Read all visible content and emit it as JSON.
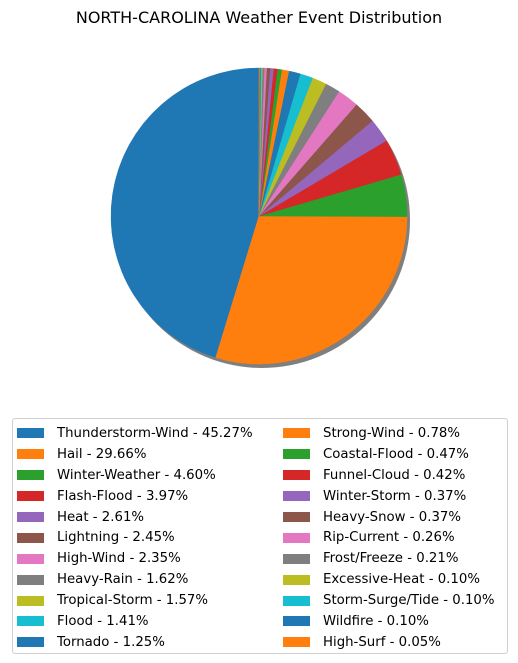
{
  "chart_data": {
    "type": "pie",
    "title": "NORTH-CAROLINA Weather Event Distribution",
    "slices": [
      {
        "label": "Thunderstorm-Wind - 45.27%",
        "value": 45.27,
        "color": "#1f77b4"
      },
      {
        "label": "Hail - 29.66%",
        "value": 29.66,
        "color": "#ff7f0e"
      },
      {
        "label": "Winter-Weather - 4.60%",
        "value": 4.6,
        "color": "#2ca02c"
      },
      {
        "label": "Flash-Flood - 3.97%",
        "value": 3.97,
        "color": "#d62728"
      },
      {
        "label": "Heat - 2.61%",
        "value": 2.61,
        "color": "#9467bd"
      },
      {
        "label": "Lightning - 2.45%",
        "value": 2.45,
        "color": "#8c564b"
      },
      {
        "label": "High-Wind - 2.35%",
        "value": 2.35,
        "color": "#e377c2"
      },
      {
        "label": "Heavy-Rain - 1.62%",
        "value": 1.62,
        "color": "#7f7f7f"
      },
      {
        "label": "Tropical-Storm - 1.57%",
        "value": 1.57,
        "color": "#bcbd22"
      },
      {
        "label": "Flood - 1.41%",
        "value": 1.41,
        "color": "#17becf"
      },
      {
        "label": "Tornado - 1.25%",
        "value": 1.25,
        "color": "#1f77b4"
      },
      {
        "label": "Strong-Wind - 0.78%",
        "value": 0.78,
        "color": "#ff7f0e"
      },
      {
        "label": "Coastal-Flood - 0.47%",
        "value": 0.47,
        "color": "#2ca02c"
      },
      {
        "label": "Funnel-Cloud - 0.42%",
        "value": 0.42,
        "color": "#d62728"
      },
      {
        "label": "Winter-Storm - 0.37%",
        "value": 0.37,
        "color": "#9467bd"
      },
      {
        "label": "Heavy-Snow - 0.37%",
        "value": 0.37,
        "color": "#8c564b"
      },
      {
        "label": "Rip-Current - 0.26%",
        "value": 0.26,
        "color": "#e377c2"
      },
      {
        "label": "Frost/Freeze - 0.21%",
        "value": 0.21,
        "color": "#7f7f7f"
      },
      {
        "label": "Excessive-Heat - 0.10%",
        "value": 0.1,
        "color": "#bcbd22"
      },
      {
        "label": "Storm-Surge/Tide - 0.10%",
        "value": 0.1,
        "color": "#17becf"
      },
      {
        "label": "Wildfire - 0.10%",
        "value": 0.1,
        "color": "#1f77b4"
      },
      {
        "label": "High-Surf - 0.05%",
        "value": 0.05,
        "color": "#ff7f0e"
      }
    ],
    "start_angle": "top (90°)",
    "direction": "counter-clockwise",
    "shadow": true,
    "legend_position": "bottom",
    "legend_columns": 2
  }
}
